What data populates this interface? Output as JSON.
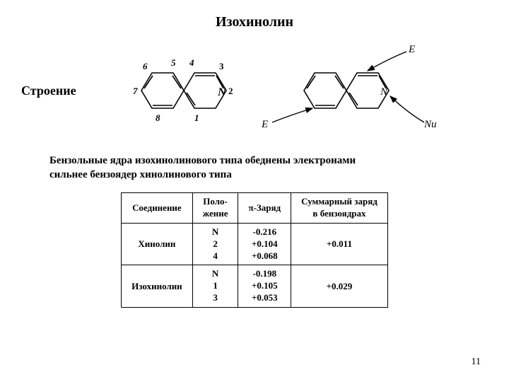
{
  "title": "Изохинолин",
  "structure_label": "Строение",
  "description_line1": "Бензольные ядра изохинолинового типа обеднены электронами",
  "description_line2": "сильнее бензоядер хинолинового типа",
  "table": {
    "headers": {
      "compound": "Соединение",
      "position": "Поло-\nжение",
      "charge": "π-Заряд",
      "sum_charge": "Суммарный заряд\nв бензоядрах"
    },
    "rows": [
      {
        "compound": "Хинолин",
        "positions": [
          "N",
          "2",
          "4"
        ],
        "charges": [
          "-0.216",
          "+0.104",
          "+0.068"
        ],
        "sum": "+0.011"
      },
      {
        "compound": "Изохинолин",
        "positions": [
          "N",
          "1",
          "3"
        ],
        "charges": [
          "-0.198",
          "+0.105",
          "+0.053"
        ],
        "sum": "+0.029"
      }
    ]
  },
  "page_number": "11",
  "diagram1": {
    "atom_labels": [
      "1",
      "2",
      "3",
      "4",
      "5",
      "6",
      "7",
      "8"
    ],
    "n_label": "N"
  },
  "diagram2": {
    "labels": [
      "E",
      "E",
      "Nu"
    ],
    "n_label": "N"
  }
}
